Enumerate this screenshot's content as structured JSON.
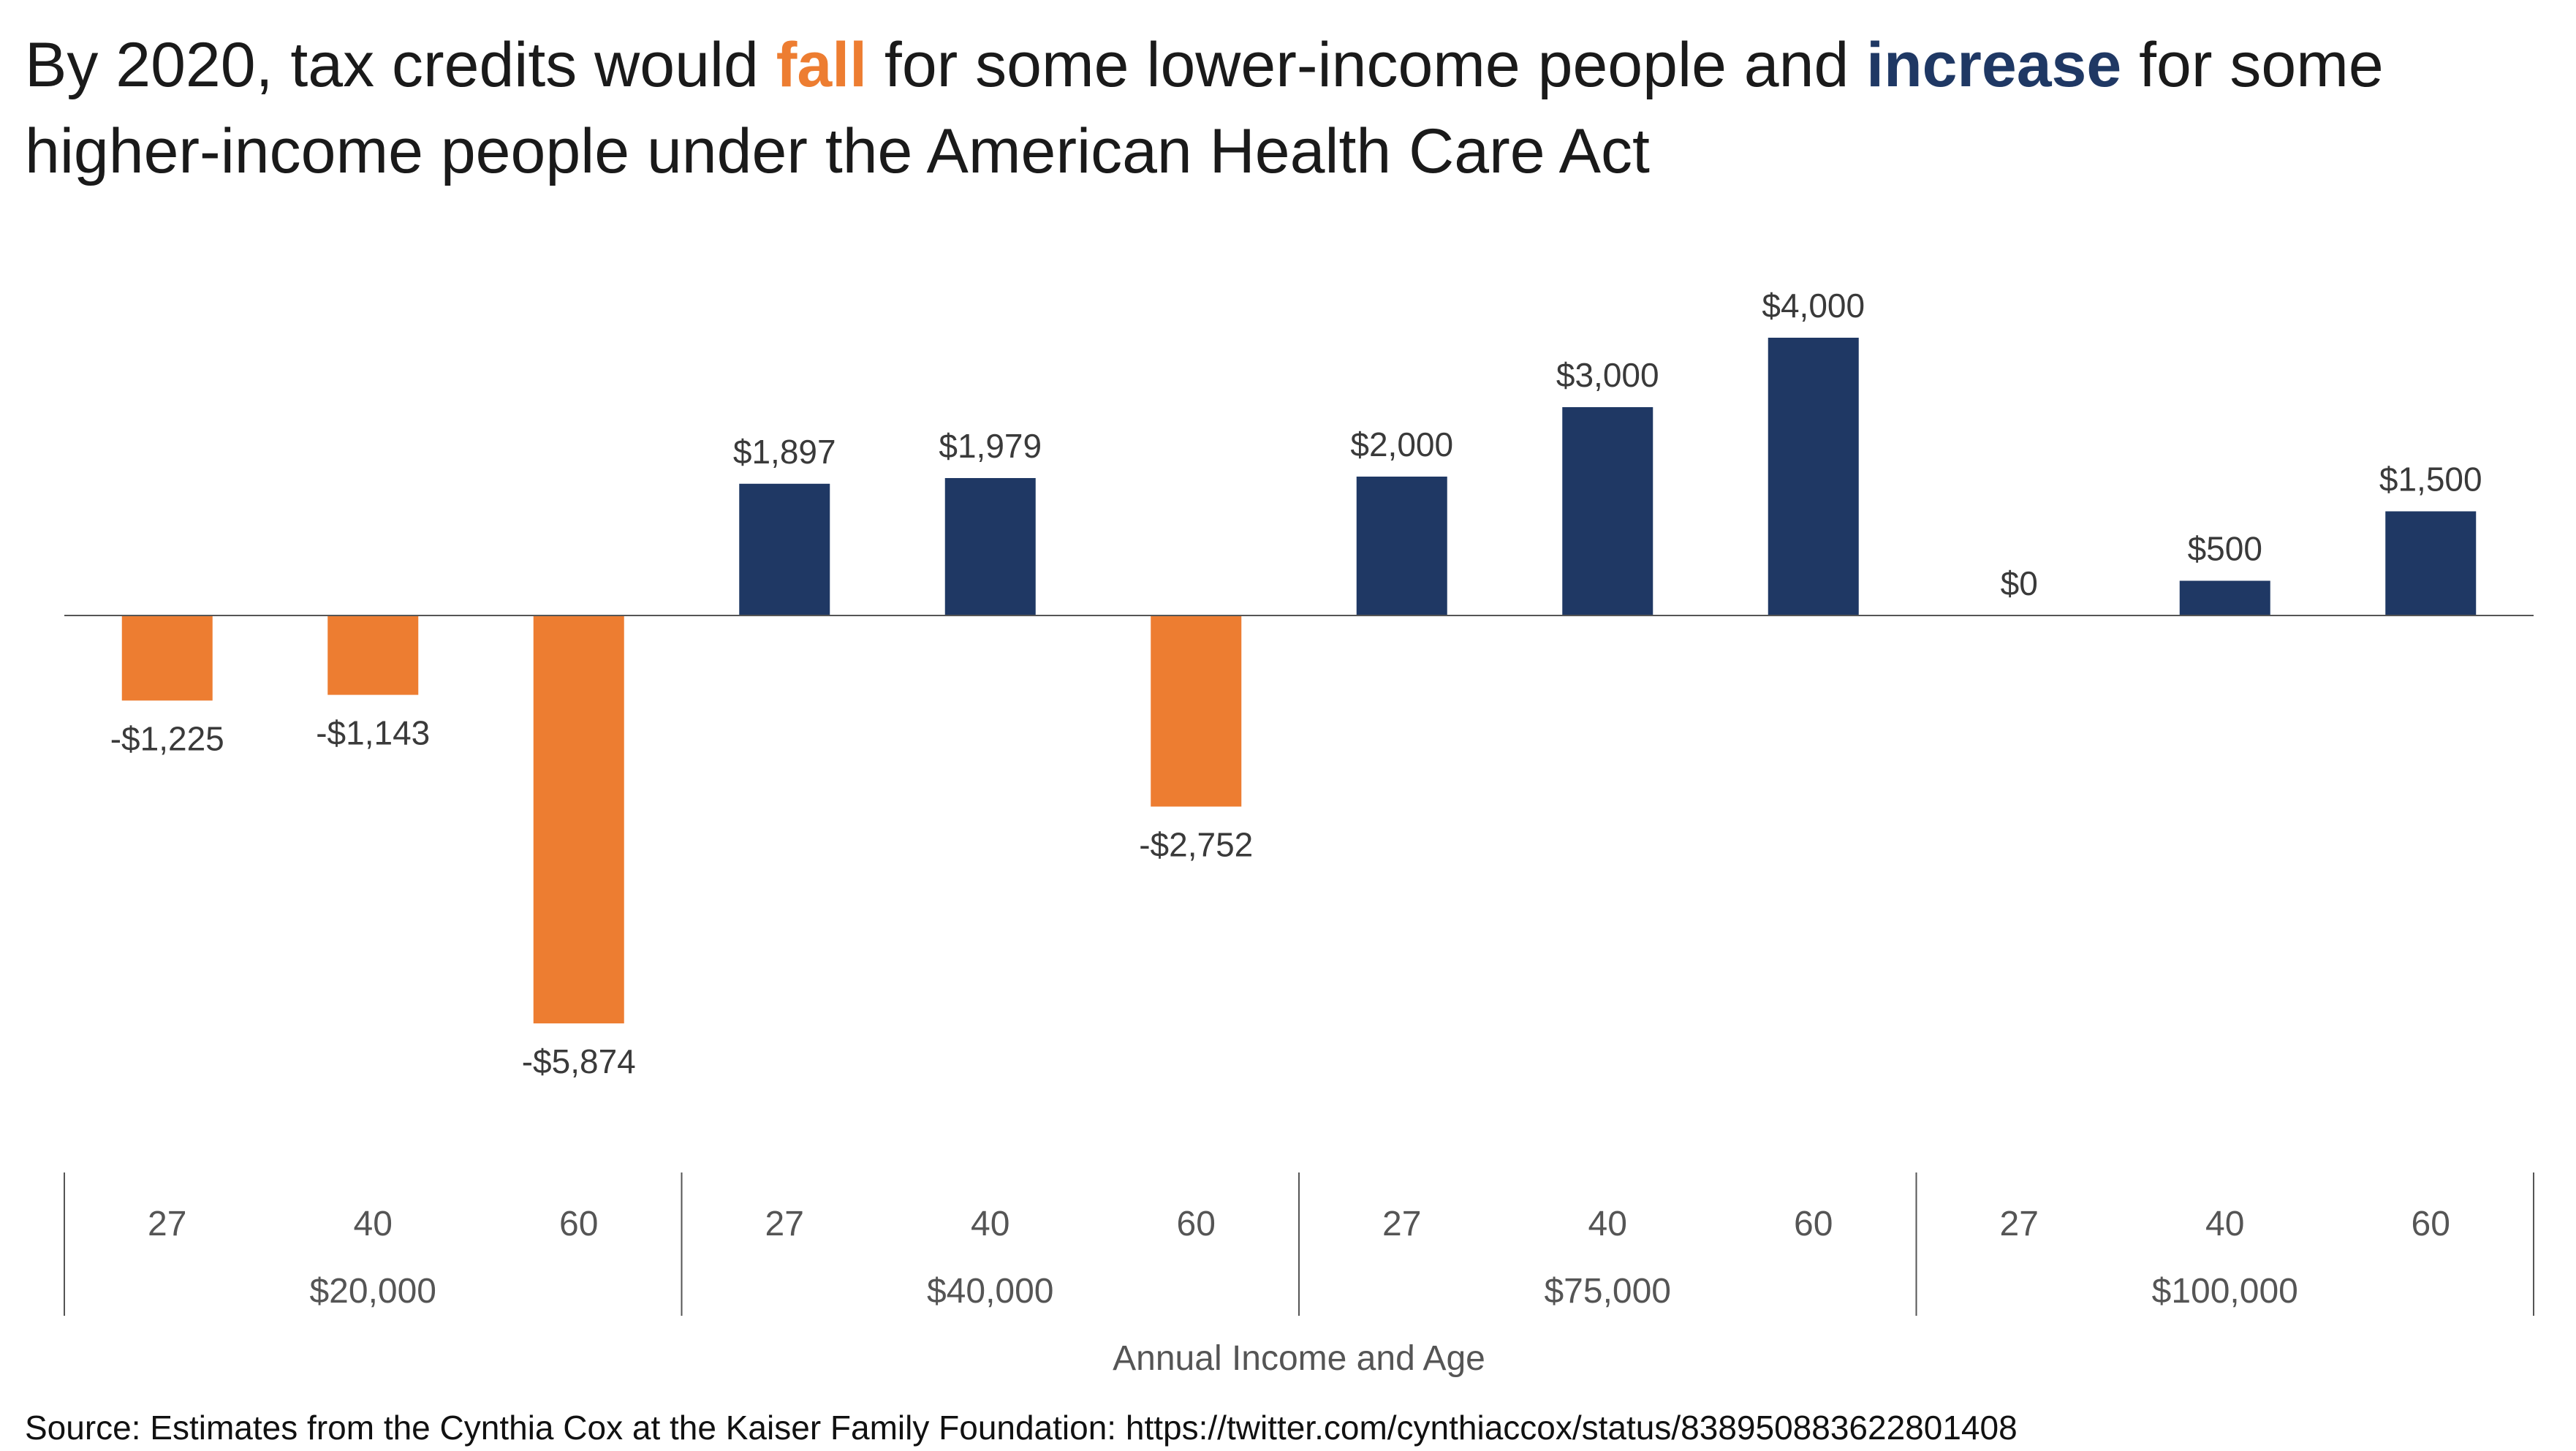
{
  "title": {
    "part1": "By 2020, tax credits would ",
    "fall_word": "fall",
    "part2": " for some lower-income people and ",
    "increase_word": "increase",
    "part3": " for some higher-income people under the American Health Care Act"
  },
  "colors": {
    "negative": "#ED7D31",
    "positive": "#1F3864",
    "axis": "#555555",
    "label": "#3a3a3a"
  },
  "chart_data": {
    "type": "bar",
    "title": "By 2020, tax credits would fall for some lower-income people and increase for some higher-income people under the American Health Care Act",
    "xlabel": "Annual Income and Age",
    "ylabel": "",
    "groups": [
      "$20,000",
      "$40,000",
      "$75,000",
      "$100,000"
    ],
    "categories": [
      "27",
      "40",
      "60",
      "27",
      "40",
      "60",
      "27",
      "40",
      "60",
      "27",
      "40",
      "60"
    ],
    "values": [
      -1225,
      -1143,
      -5874,
      1897,
      1979,
      -2752,
      2000,
      3000,
      4000,
      0,
      500,
      1500
    ],
    "value_labels": [
      "-$1,225",
      "-$1,143",
      "-$5,874",
      "$1,897",
      "$1,979",
      "-$2,752",
      "$2,000",
      "$3,000",
      "$4,000",
      "$0",
      "$500",
      "$1,500"
    ],
    "ylim": [
      -7500,
      4500
    ],
    "grid": false,
    "legend": "none"
  },
  "source": "Source: Estimates from the Cynthia Cox at the Kaiser Family Foundation: https://twitter.com/cynthiaccox/status/838950883622801408"
}
